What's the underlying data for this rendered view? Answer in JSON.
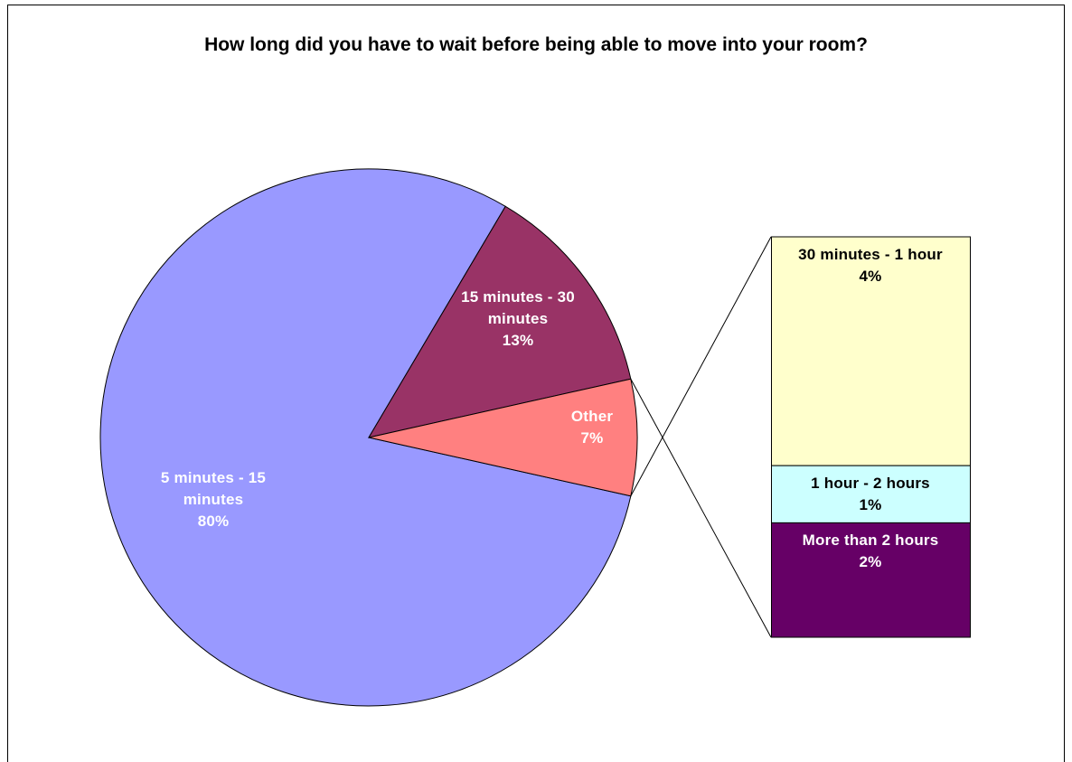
{
  "chart_data": {
    "type": "pie-of-bar",
    "title": "How long did you have to wait before being able to move into your room?",
    "categories": [
      "5 minutes - 15 minutes",
      "15 minutes - 30 minutes",
      "Other"
    ],
    "values": [
      80,
      13,
      7
    ],
    "value_labels": [
      "80%",
      "13%",
      "7%"
    ],
    "colors": [
      "#9999ff",
      "#993366",
      "#ff8080"
    ],
    "bar": {
      "categories": [
        "30 minutes - 1 hour",
        "1 hour - 2 hours",
        "More than 2 hours"
      ],
      "values": [
        4,
        1,
        2
      ],
      "value_labels": [
        "4%",
        "1%",
        "2%"
      ],
      "colors": [
        "#ffffcc",
        "#ccffff",
        "#660066"
      ]
    }
  }
}
